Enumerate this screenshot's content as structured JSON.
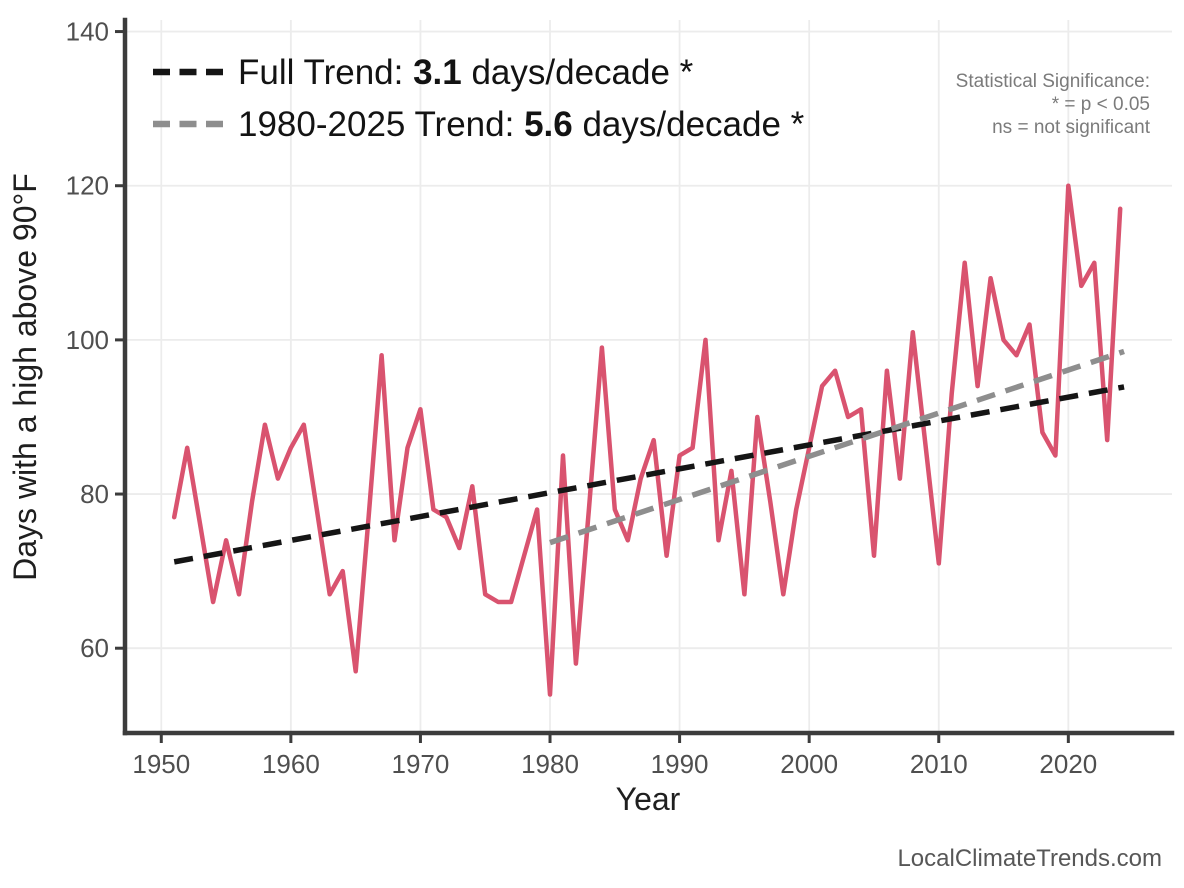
{
  "watermark": "LocalClimateTrends.com",
  "legend": {
    "full": {
      "prefix": "Full Trend: ",
      "value": "3.1",
      "suffix": " days/decade *"
    },
    "recent": {
      "prefix": "1980-2025 Trend: ",
      "value": "5.6",
      "suffix": " days/decade *"
    }
  },
  "significance_note": {
    "line1": "Statistical Significance:",
    "line2": "* = p < 0.05",
    "line3": "ns = not significant"
  },
  "chart_data": {
    "type": "line",
    "title": "",
    "xlabel": "Year",
    "ylabel": "Days with a high above 90°F",
    "xlim": [
      1947.2,
      2028
    ],
    "ylim": [
      49,
      141.5
    ],
    "xticks": [
      1950,
      1960,
      1970,
      1980,
      1990,
      2000,
      2010,
      2020
    ],
    "yticks": [
      60,
      80,
      100,
      120,
      140
    ],
    "grid": true,
    "legend_position": "top-left",
    "series": [
      {
        "name": "days-above-90F",
        "color": "#d9536f",
        "x": [
          1951,
          1952,
          1953,
          1954,
          1955,
          1956,
          1957,
          1958,
          1959,
          1960,
          1961,
          1962,
          1963,
          1964,
          1965,
          1966,
          1967,
          1968,
          1969,
          1970,
          1971,
          1972,
          1973,
          1974,
          1975,
          1976,
          1977,
          1978,
          1979,
          1980,
          1981,
          1982,
          1983,
          1984,
          1985,
          1986,
          1987,
          1988,
          1989,
          1990,
          1991,
          1992,
          1993,
          1994,
          1995,
          1996,
          1997,
          1998,
          1999,
          2000,
          2001,
          2002,
          2003,
          2004,
          2005,
          2006,
          2007,
          2008,
          2009,
          2010,
          2011,
          2012,
          2013,
          2014,
          2015,
          2016,
          2017,
          2018,
          2019,
          2020,
          2021,
          2022,
          2023,
          2024
        ],
        "y": [
          77,
          86,
          76,
          66,
          74,
          67,
          79,
          89,
          82,
          86,
          89,
          78,
          67,
          70,
          57,
          77,
          98,
          74,
          86,
          91,
          78,
          77,
          73,
          81,
          67,
          66,
          66,
          72,
          78,
          54,
          85,
          58,
          78,
          99,
          78,
          74,
          82,
          87,
          72,
          85,
          86,
          100,
          74,
          83,
          67,
          90,
          79,
          67,
          78,
          86,
          94,
          96,
          90,
          91,
          72,
          96,
          82,
          101,
          86,
          71,
          93,
          110,
          94,
          108,
          100,
          98,
          102,
          88,
          85,
          120,
          107,
          110,
          87,
          117
        ]
      }
    ],
    "trend_lines": [
      {
        "name": "full-trend",
        "label": "Full Trend",
        "slope_days_per_decade": 3.1,
        "significant": "*",
        "color": "#151515",
        "x1": 1951,
        "y1": 71.2,
        "x2": 2024.3,
        "y2": 93.9
      },
      {
        "name": "recent-trend",
        "label": "1980-2025 Trend",
        "slope_days_per_decade": 5.6,
        "significant": "*",
        "color": "#8e8e8e",
        "x1": 1980,
        "y1": 73.7,
        "x2": 2024.3,
        "y2": 98.5
      }
    ]
  }
}
